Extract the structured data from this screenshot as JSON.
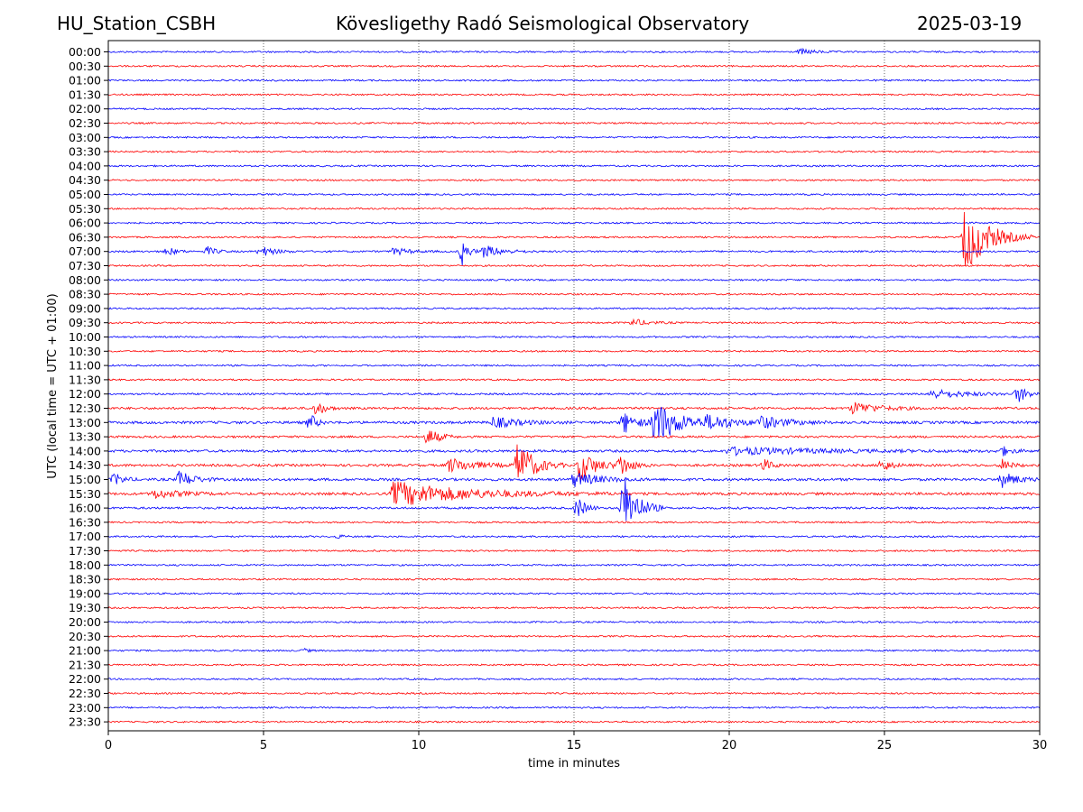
{
  "header": {
    "station": "HU_Station_CSBH",
    "title": "Kövesligethy Radó Seismological Observatory",
    "date": "2025-03-19"
  },
  "chart_data": {
    "type": "line",
    "xlabel": "time in minutes",
    "ylabel": "UTC (local time = UTC + 01:00)",
    "xlim": [
      0,
      30
    ],
    "xticks": [
      0,
      5,
      10,
      15,
      20,
      25,
      30
    ],
    "grid": "vertical dotted at 5-minute intervals",
    "colors": [
      "#0000ff",
      "#ff0000"
    ],
    "rows": [
      "00:00",
      "00:30",
      "01:00",
      "01:30",
      "02:00",
      "02:30",
      "03:00",
      "03:30",
      "04:00",
      "04:30",
      "05:00",
      "05:30",
      "06:00",
      "06:30",
      "07:00",
      "07:30",
      "08:00",
      "08:30",
      "09:00",
      "09:30",
      "10:00",
      "10:30",
      "11:00",
      "11:30",
      "12:00",
      "12:30",
      "13:00",
      "13:30",
      "14:00",
      "14:30",
      "15:00",
      "15:30",
      "16:00",
      "16:30",
      "17:00",
      "17:30",
      "18:00",
      "18:30",
      "19:00",
      "19:30",
      "20:00",
      "20:30",
      "21:00",
      "21:30",
      "22:00",
      "22:30",
      "23:00",
      "23:30"
    ],
    "noise_amplitude": [
      1.0,
      1.0,
      1.0,
      1.0,
      1.0,
      1.0,
      1.0,
      1.0,
      1.0,
      1.0,
      1.0,
      1.0,
      1.0,
      1.0,
      1.1,
      1.0,
      1.0,
      1.0,
      1.0,
      1.0,
      1.0,
      1.0,
      1.0,
      1.0,
      1.1,
      1.4,
      1.6,
      1.3,
      1.5,
      1.5,
      1.6,
      1.6,
      1.3,
      1.0,
      1.0,
      1.0,
      1.0,
      1.0,
      1.0,
      1.0,
      1.0,
      1.0,
      1.0,
      1.0,
      1.0,
      1.0,
      1.0,
      1.0
    ],
    "events": [
      {
        "row": 0,
        "t": 22.3,
        "amp": 3,
        "dur": 0.6
      },
      {
        "row": 13,
        "t": 27.6,
        "amp": 40,
        "dur": 0.9
      },
      {
        "row": 14,
        "t": 1.9,
        "amp": 5,
        "dur": 0.3
      },
      {
        "row": 14,
        "t": 3.2,
        "amp": 5,
        "dur": 0.3
      },
      {
        "row": 14,
        "t": 4.9,
        "amp": 6,
        "dur": 0.5
      },
      {
        "row": 14,
        "t": 9.2,
        "amp": 4,
        "dur": 0.6
      },
      {
        "row": 14,
        "t": 11.4,
        "amp": 15,
        "dur": 0.2
      },
      {
        "row": 14,
        "t": 12.1,
        "amp": 7,
        "dur": 0.7
      },
      {
        "row": 19,
        "t": 16.9,
        "amp": 4,
        "dur": 0.6
      },
      {
        "row": 24,
        "t": 26.5,
        "amp": 5,
        "dur": 1.5
      },
      {
        "row": 24,
        "t": 29.3,
        "amp": 10,
        "dur": 0.3
      },
      {
        "row": 25,
        "t": 6.7,
        "amp": 8,
        "dur": 0.3
      },
      {
        "row": 25,
        "t": 24.0,
        "amp": 7,
        "dur": 1.0
      },
      {
        "row": 26,
        "t": 6.5,
        "amp": 10,
        "dur": 0.2
      },
      {
        "row": 26,
        "t": 12.4,
        "amp": 6,
        "dur": 1.0
      },
      {
        "row": 26,
        "t": 16.6,
        "amp": 12,
        "dur": 0.5
      },
      {
        "row": 26,
        "t": 17.6,
        "amp": 25,
        "dur": 1.0
      },
      {
        "row": 26,
        "t": 19.3,
        "amp": 6,
        "dur": 1.5
      },
      {
        "row": 26,
        "t": 21.0,
        "amp": 6,
        "dur": 1.0
      },
      {
        "row": 27,
        "t": 10.3,
        "amp": 10,
        "dur": 0.4
      },
      {
        "row": 28,
        "t": 20.0,
        "amp": 4,
        "dur": 4.0
      },
      {
        "row": 28,
        "t": 28.8,
        "amp": 5,
        "dur": 0.3
      },
      {
        "row": 29,
        "t": 11.0,
        "amp": 8,
        "dur": 1.0
      },
      {
        "row": 29,
        "t": 13.2,
        "amp": 28,
        "dur": 0.6
      },
      {
        "row": 29,
        "t": 15.2,
        "amp": 18,
        "dur": 0.6
      },
      {
        "row": 29,
        "t": 16.5,
        "amp": 12,
        "dur": 0.4
      },
      {
        "row": 29,
        "t": 21.1,
        "amp": 7,
        "dur": 0.3
      },
      {
        "row": 29,
        "t": 24.9,
        "amp": 8,
        "dur": 0.3
      },
      {
        "row": 29,
        "t": 28.8,
        "amp": 6,
        "dur": 0.3
      },
      {
        "row": 30,
        "t": 0.2,
        "amp": 7,
        "dur": 0.3
      },
      {
        "row": 30,
        "t": 2.3,
        "amp": 10,
        "dur": 0.5
      },
      {
        "row": 30,
        "t": 15.0,
        "amp": 8,
        "dur": 1.0
      },
      {
        "row": 30,
        "t": 28.8,
        "amp": 8,
        "dur": 0.6
      },
      {
        "row": 31,
        "t": 1.5,
        "amp": 5,
        "dur": 1.0
      },
      {
        "row": 31,
        "t": 9.2,
        "amp": 14,
        "dur": 3.0
      },
      {
        "row": 32,
        "t": 15.1,
        "amp": 12,
        "dur": 0.3
      },
      {
        "row": 32,
        "t": 16.6,
        "amp": 40,
        "dur": 0.5
      },
      {
        "row": 34,
        "t": 7.4,
        "amp": 2,
        "dur": 0.2
      },
      {
        "row": 42,
        "t": 6.3,
        "amp": 2,
        "dur": 0.2
      }
    ]
  }
}
